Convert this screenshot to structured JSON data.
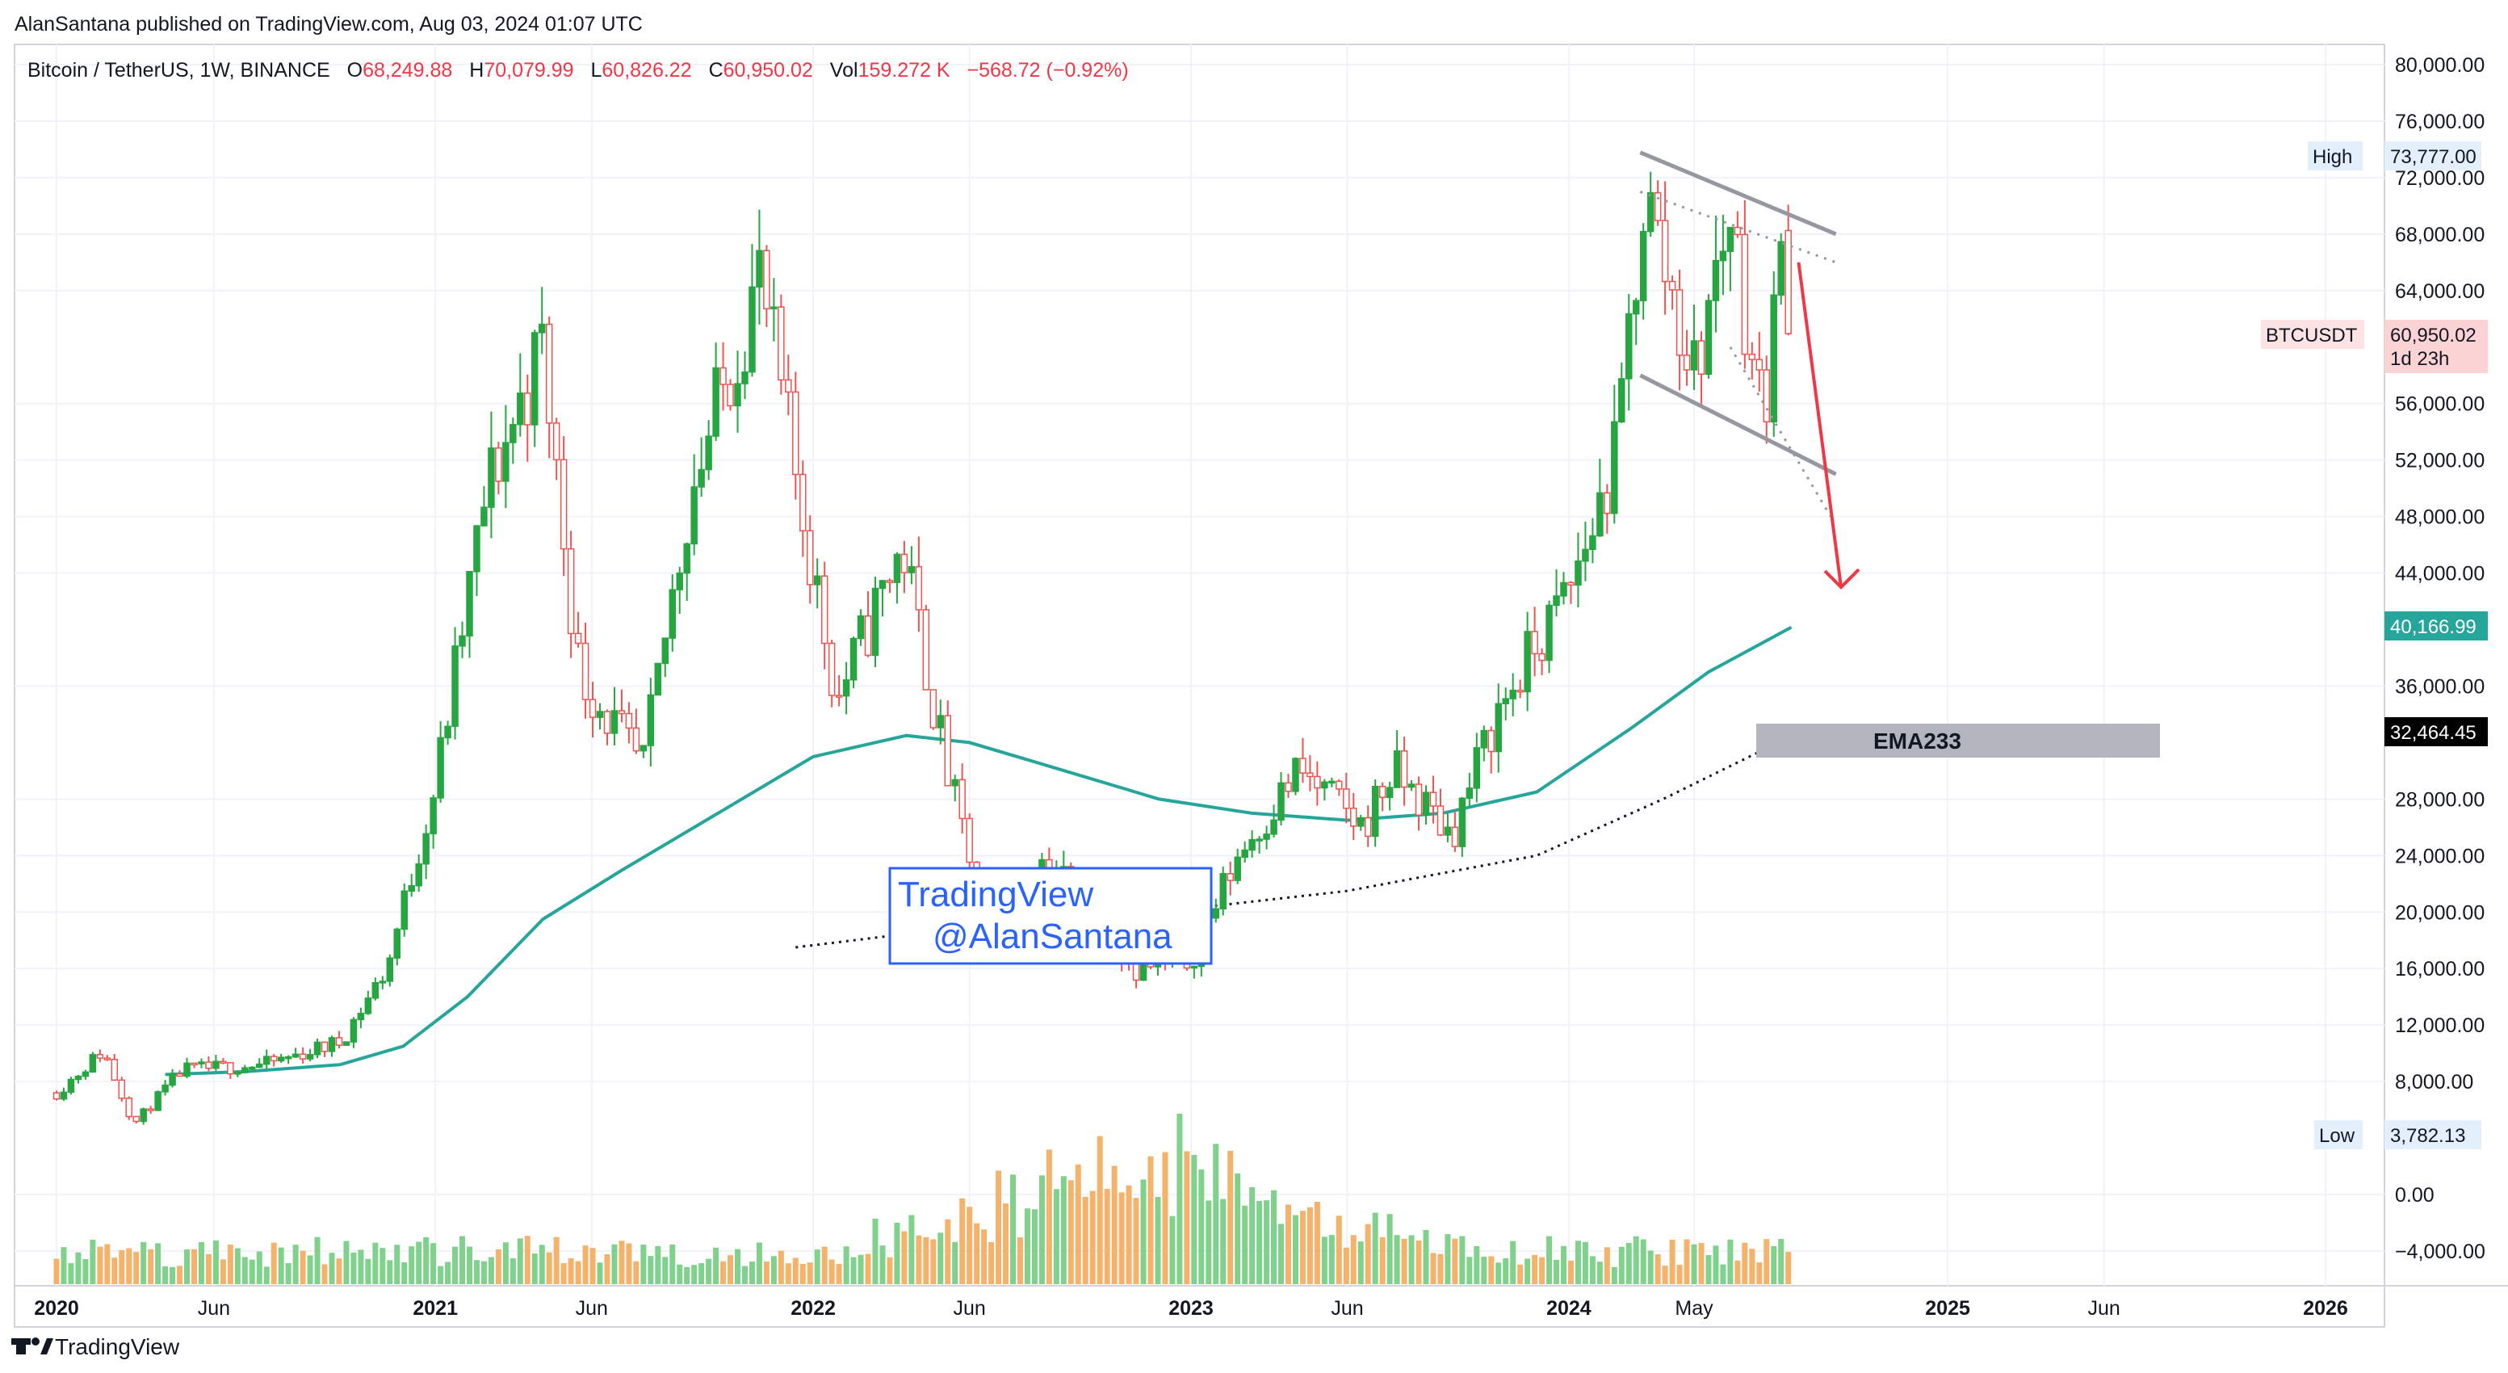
{
  "publish_line": "AlanSantana published on TradingView.com, Aug 03, 2024 01:07 UTC",
  "header": {
    "symbol": "Bitcoin / TetherUS, 1W, BINANCE",
    "open_label": "O",
    "open": "68,249.88",
    "high_label": "H",
    "high": "70,079.99",
    "low_label": "L",
    "low": "60,826.22",
    "close_label": "C",
    "close": "60,950.02",
    "vol_label": "Vol",
    "vol": "159.272 K",
    "change": "−568.72 (−0.92%)"
  },
  "price_axis": {
    "ticks": [
      "80,000.00",
      "76,000.00",
      "72,000.00",
      "68,000.00",
      "64,000.00",
      "56,000.00",
      "52,000.00",
      "48,000.00",
      "44,000.00",
      "36,000.00",
      "28,000.00",
      "24,000.00",
      "20,000.00",
      "16,000.00",
      "12,000.00",
      "8,000.00",
      "0.00",
      "−4,000.00"
    ],
    "high_tag": "High",
    "high_value": "73,777.00",
    "low_tag": "Low",
    "low_value": "3,782.13",
    "symbol_tag": "BTCUSDT",
    "last_price": "60,950.02",
    "countdown": "1d 23h",
    "ema_value": "40,166.99",
    "ema233_value": "32,464.45"
  },
  "time_axis": {
    "labels": [
      "2020",
      "Jun",
      "2021",
      "Jun",
      "2022",
      "Jun",
      "2023",
      "Jun",
      "2024",
      "May",
      "2025",
      "Jun",
      "2026"
    ],
    "bold": [
      true,
      false,
      true,
      false,
      true,
      false,
      true,
      false,
      true,
      false,
      true,
      false,
      true
    ]
  },
  "annotations": {
    "ema_label": "EMA233",
    "watermark_line1": "TradingView",
    "watermark_line2": "@AlanSantana"
  },
  "footer": {
    "brand": "TradingView"
  },
  "colors": {
    "up": "#26a641",
    "down": "#ef5350",
    "ema": "#26a69a",
    "vol_up": "#7fd18b",
    "vol_down": "#f5b26b",
    "arrow": "#f23645",
    "channel": "#9598a1",
    "watermark": "#2962ff"
  },
  "chart_data": {
    "type": "candlestick",
    "symbol": "Bitcoin / TetherUS",
    "timeframe": "1W",
    "ylim": [
      -4000,
      80000
    ],
    "waypoints": [
      [
        "2020-01-01",
        7200
      ],
      [
        "2020-02-15",
        10200
      ],
      [
        "2020-03-16",
        5000
      ],
      [
        "2020-05-01",
        8800
      ],
      [
        "2020-07-20",
        9200
      ],
      [
        "2020-10-01",
        10800
      ],
      [
        "2020-11-15",
        16000
      ],
      [
        "2021-01-01",
        29000
      ],
      [
        "2021-02-20",
        50000
      ],
      [
        "2021-04-14",
        60000
      ],
      [
        "2021-05-20",
        37000
      ],
      [
        "2021-07-20",
        30000
      ],
      [
        "2021-09-05",
        50000
      ],
      [
        "2021-11-10",
        65000
      ],
      [
        "2022-01-24",
        35000
      ],
      [
        "2022-03-28",
        46000
      ],
      [
        "2022-05-10",
        30000
      ],
      [
        "2022-06-18",
        19000
      ],
      [
        "2022-08-15",
        24000
      ],
      [
        "2022-11-09",
        16000
      ],
      [
        "2022-12-31",
        16500
      ],
      [
        "2023-02-15",
        24000
      ],
      [
        "2023-04-15",
        30000
      ],
      [
        "2023-06-15",
        26000
      ],
      [
        "2023-07-15",
        30000
      ],
      [
        "2023-09-10",
        25500
      ],
      [
        "2023-10-23",
        34000
      ],
      [
        "2023-12-31",
        42500
      ],
      [
        "2024-02-15",
        52000
      ],
      [
        "2024-03-14",
        71000
      ],
      [
        "2024-05-01",
        58000
      ],
      [
        "2024-06-05",
        70000
      ],
      [
        "2024-07-05",
        55000
      ],
      [
        "2024-07-28",
        68200
      ],
      [
        "2024-08-03",
        60950
      ]
    ],
    "ema_points": [
      [
        "2020-04-15",
        8500
      ],
      [
        "2020-07-01",
        8700
      ],
      [
        "2020-10-01",
        9200
      ],
      [
        "2020-12-01",
        10500
      ],
      [
        "2021-02-01",
        14000
      ],
      [
        "2021-04-15",
        19500
      ],
      [
        "2021-07-01",
        23000
      ],
      [
        "2021-10-01",
        27000
      ],
      [
        "2022-01-01",
        31000
      ],
      [
        "2022-04-01",
        32500
      ],
      [
        "2022-06-01",
        32000
      ],
      [
        "2022-09-01",
        30000
      ],
      [
        "2022-12-01",
        28000
      ],
      [
        "2023-03-01",
        27000
      ],
      [
        "2023-06-01",
        26500
      ],
      [
        "2023-09-01",
        27000
      ],
      [
        "2023-12-01",
        28500
      ],
      [
        "2024-03-01",
        33000
      ],
      [
        "2024-05-15",
        37000
      ],
      [
        "2024-08-03",
        40166.99
      ]
    ],
    "ema233_points": [
      [
        "2021-12-15",
        17500
      ],
      [
        "2022-06-01",
        19000
      ],
      [
        "2022-12-01",
        20000
      ],
      [
        "2023-06-01",
        21500
      ],
      [
        "2023-12-01",
        24000
      ],
      [
        "2024-04-01",
        28000
      ],
      [
        "2024-08-03",
        32464.45
      ]
    ],
    "channel": {
      "upper": [
        [
          "2024-03-10",
          73777
        ],
        [
          "2024-09-15",
          68000
        ]
      ],
      "lower": [
        [
          "2024-03-10",
          58000
        ],
        [
          "2024-09-15",
          51000
        ]
      ],
      "dotted": [
        [
          "2024-03-10",
          71000
        ],
        [
          "2024-09-15",
          66000
        ]
      ],
      "dotted_lower": [
        [
          "2024-06-05",
          60000
        ],
        [
          "2024-09-10",
          48000
        ]
      ]
    },
    "arrow": {
      "from": [
        "2024-08-10",
        66000
      ],
      "to": [
        "2024-09-20",
        43000
      ]
    },
    "high": 73777.0,
    "low": 3782.13,
    "last": 60950.02
  }
}
